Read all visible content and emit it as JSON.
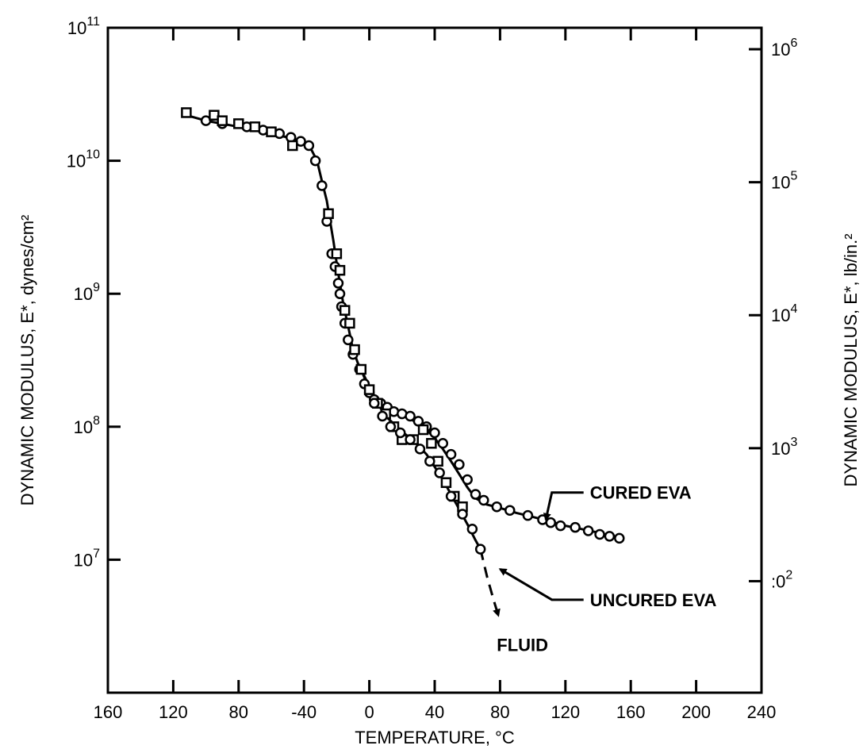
{
  "chart_data": {
    "type": "scatter",
    "title": "",
    "xlabel": "TEMPERATURE, °C",
    "ylabel_left": "DYNAMIC MODULUS, E*, dynes/cm²",
    "ylabel_right": "DYNAMIC MODULUS, E*, lb/in.²",
    "xlim": [
      -160,
      240
    ],
    "ylim_left": [
      1000000,
      100000000000
    ],
    "ylim_right": [
      14.5,
      1450000
    ],
    "y_scale": "log",
    "grid": false,
    "x_tick_labels": [
      {
        "value": -160,
        "label": "160"
      },
      {
        "value": -120,
        "label": "120"
      },
      {
        "value": -80,
        "label": "80"
      },
      {
        "value": -40,
        "label": "-40"
      },
      {
        "value": 0,
        "label": "0"
      },
      {
        "value": 40,
        "label": "40"
      },
      {
        "value": 80,
        "label": "80"
      },
      {
        "value": 120,
        "label": "120"
      },
      {
        "value": 160,
        "label": "160"
      },
      {
        "value": 200,
        "label": "200"
      },
      {
        "value": 240,
        "label": "240"
      }
    ],
    "y_left_tick_labels": [
      {
        "value": 100000000000,
        "base": "10",
        "exp": "11"
      },
      {
        "value": 10000000000,
        "base": "10",
        "exp": "10"
      },
      {
        "value": 1000000000,
        "base": "10",
        "exp": "9"
      },
      {
        "value": 100000000,
        "base": "10",
        "exp": "8"
      },
      {
        "value": 10000000,
        "base": "10",
        "exp": "7"
      }
    ],
    "y_right_tick_labels": [
      {
        "value": 1000000,
        "base": "10",
        "exp": "6"
      },
      {
        "value": 100000,
        "base": "10",
        "exp": "5"
      },
      {
        "value": 10000,
        "base": "10",
        "exp": "4"
      },
      {
        "value": 1000,
        "base": "10",
        "exp": "3"
      },
      {
        "value": 100,
        "base": ":0",
        "exp": "2"
      }
    ],
    "series": [
      {
        "name": "CURED EVA",
        "marker": "circle",
        "x": [
          -100,
          -90,
          -75,
          -65,
          -55,
          -48,
          -42,
          -37,
          -33,
          -29,
          -26,
          -23,
          -21,
          -19,
          -18,
          -17,
          -15,
          -13,
          -10,
          -6,
          -3,
          0,
          3,
          7,
          11,
          15,
          20,
          25,
          30,
          35,
          40,
          45,
          50,
          55,
          60,
          65,
          70,
          78,
          86,
          97,
          106,
          111,
          117,
          126,
          134,
          141,
          147,
          153
        ],
        "y": [
          20000000000,
          19000000000,
          18000000000,
          17000000000,
          16000000000,
          15000000000,
          14000000000,
          13000000000,
          10000000000,
          6500000000,
          3500000000,
          2000000000,
          1600000000,
          1200000000,
          1000000000,
          800000000,
          600000000,
          450000000,
          350000000,
          270000000,
          210000000,
          180000000,
          160000000,
          150000000,
          140000000,
          130000000,
          125000000,
          120000000,
          110000000,
          100000000,
          90000000,
          75000000,
          62000000,
          52000000,
          40000000,
          31000000,
          28000000,
          25000000,
          23500000,
          21500000,
          20000000,
          19000000,
          18000000,
          17500000,
          16500000,
          15500000,
          15000000,
          14500000
        ]
      },
      {
        "name": "",
        "marker": "square",
        "x": [
          -112,
          -95,
          -90,
          -80,
          -70,
          -60,
          -47,
          -25,
          -20,
          -18,
          -15,
          -12,
          -9,
          -5,
          0,
          5,
          10,
          15,
          20,
          27,
          33,
          38,
          42,
          47,
          52,
          57
        ],
        "y": [
          23000000000,
          22000000000,
          20000000000,
          19000000000,
          18000000000,
          16500000000,
          13000000000,
          4000000000,
          2000000000,
          1500000000,
          750000000,
          600000000,
          380000000,
          270000000,
          190000000,
          150000000,
          125000000,
          100000000,
          80000000,
          80000000,
          95000000,
          75000000,
          55000000,
          38000000,
          30000000,
          25000000
        ]
      },
      {
        "name": "UNCURED EVA",
        "marker": "circle",
        "x": [
          3,
          8,
          13,
          19,
          25,
          31,
          37,
          43,
          50,
          57,
          63,
          68
        ],
        "y": [
          150000000,
          120000000,
          100000000,
          90000000,
          80000000,
          68000000,
          55000000,
          45000000,
          30000000,
          22000000,
          17000000,
          12000000
        ]
      }
    ],
    "curves": [
      {
        "name": "CURED EVA",
        "style": "solid",
        "x": [
          -112,
          -100,
          -80,
          -65,
          -50,
          -42,
          -36,
          -32,
          -29,
          -26,
          -24,
          -22,
          -20,
          -18,
          -16,
          -14,
          -12,
          -10,
          -7,
          -4,
          0,
          5,
          10,
          15,
          20,
          25,
          30,
          35,
          40,
          45,
          50,
          55,
          60,
          65,
          72,
          80,
          90,
          100,
          110,
          120,
          130,
          140,
          153
        ],
        "y": [
          22000000000,
          20000000000,
          18000000000,
          16500000000,
          15000000000,
          14000000000,
          12500000000,
          10000000000,
          7000000000,
          5000000000,
          3500000000,
          2500000000,
          1700000000,
          1200000000,
          850000000,
          650000000,
          500000000,
          380000000,
          300000000,
          250000000,
          190000000,
          160000000,
          140000000,
          130000000,
          123000000,
          115000000,
          105000000,
          95000000,
          82000000,
          68000000,
          55000000,
          44000000,
          35000000,
          29000000,
          26000000,
          24500000,
          22500000,
          21000000,
          19500000,
          18000000,
          17000000,
          16000000,
          14500000
        ]
      },
      {
        "name": "UNCURED EVA",
        "style": "solid",
        "x": [
          -5,
          0,
          5,
          10,
          15,
          20,
          25,
          30,
          35,
          40,
          45,
          50,
          55,
          60,
          65,
          68
        ],
        "y": [
          270000000,
          200000000,
          150000000,
          120000000,
          105000000,
          92000000,
          82000000,
          72000000,
          62000000,
          50000000,
          40000000,
          31000000,
          24000000,
          18500000,
          14000000,
          12000000
        ]
      },
      {
        "name": "FLUID",
        "style": "dashed",
        "x": [
          68,
          72,
          76,
          79
        ],
        "y": [
          12000000,
          7500000,
          5000000,
          3800000
        ]
      }
    ],
    "annotations": [
      {
        "text": "CURED EVA",
        "x": 135,
        "y": 32000000,
        "arrow_to": [
          108,
          20000000
        ]
      },
      {
        "text": "UNCURED EVA",
        "x": 135,
        "y": 5000000,
        "arrow_to": [
          80,
          8500000
        ]
      },
      {
        "text": "FLUID",
        "x": 78,
        "y": 2300000
      }
    ]
  }
}
